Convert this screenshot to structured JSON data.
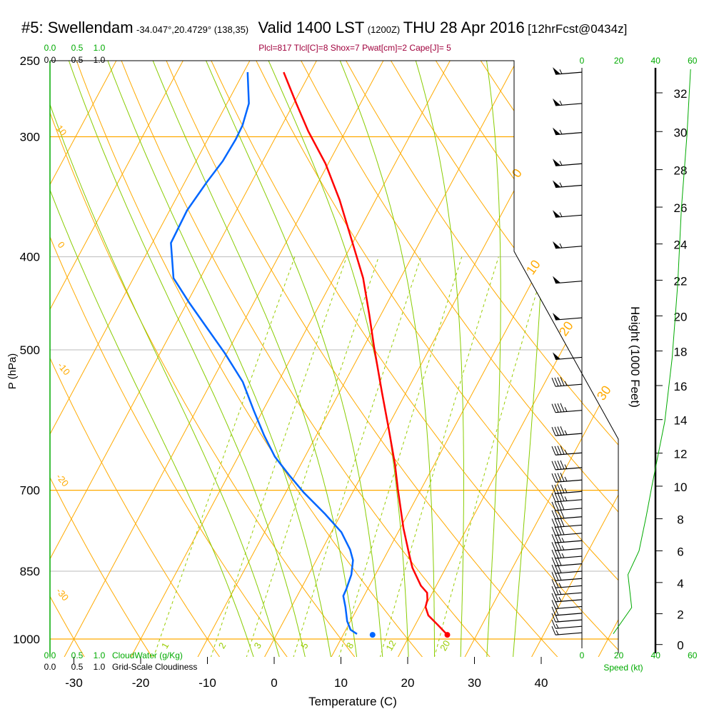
{
  "header": {
    "station": "#5: Swellendam",
    "coords": "-34.047°,20.4729° (138,35)",
    "valid": "Valid 1400 LST",
    "utc": "(1200Z)",
    "date": "THU 28 Apr 2016",
    "forecast": "[12hrFcst@0434z]",
    "indices": "Plcl=817 Tlcl[C]=8 Shox=7 Pwat[cm]=2 Cape[J]= 5"
  },
  "colors": {
    "temperature": "#ff0000",
    "dewpoint": "#0066ff",
    "isotherm": "#ffaa00",
    "moist_adiabat": "#88cc00",
    "mixing_ratio": "#99cc00",
    "axis_green": "#00aa00",
    "indices": "#a0003c"
  },
  "chart_data": {
    "type": "skewt",
    "title": "#5: Swellendam Valid 1400 LST THU 28 Apr 2016",
    "ylabel": "P (hPa)",
    "xlabel": "Temperature (C)",
    "right_axis_label": "Height (1000 Feet)",
    "pressure_ticks": [
      250,
      300,
      400,
      500,
      700,
      850,
      1000
    ],
    "pressure_ticks_labels": [
      "250",
      "300",
      "400",
      "500",
      "700",
      "850",
      "1000"
    ],
    "temperature_ticks": [
      -30,
      -20,
      -10,
      0,
      10,
      20,
      30,
      40
    ],
    "temperature_ticks_labels": [
      "-30",
      "-20",
      "-10",
      "0",
      "10",
      "20",
      "30",
      "40"
    ],
    "ylim": [
      1000,
      250
    ],
    "xlim_at_1000hPa": [
      -34,
      52
    ],
    "height_ticks": [
      0,
      2,
      4,
      6,
      8,
      10,
      12,
      14,
      16,
      18,
      20,
      22,
      24,
      26,
      28,
      30,
      32
    ],
    "height_ticks_labels": [
      "0",
      "2",
      "4",
      "6",
      "8",
      "10",
      "12",
      "14",
      "16",
      "18",
      "20",
      "22",
      "24",
      "26",
      "28",
      "30",
      "32"
    ],
    "dry_adiabat_labels": [
      "10",
      "0",
      "-10",
      "-20",
      "-30"
    ],
    "isotherm_labels": [
      "0",
      "10",
      "20",
      "30"
    ],
    "mixing_ratio_labels": [
      "1",
      "2",
      "3",
      "5",
      "8",
      "12",
      "20"
    ],
    "mixing_ratios": [
      1,
      2,
      3,
      5,
      8,
      12,
      20
    ],
    "cloud_water_axis": {
      "label": "CloudWater (g/Kg)",
      "ticks": [
        "0.0",
        "0.5",
        "1.0"
      ]
    },
    "cloudiness_axis": {
      "label": "Grid-Scale Cloudiness",
      "ticks": [
        "0.0",
        "0.5",
        "1.0"
      ]
    },
    "speed_axis": {
      "label": "Speed (kt)",
      "ticks": [
        0,
        20,
        40,
        60
      ],
      "ticks_labels": [
        "0",
        "20",
        "40",
        "60"
      ]
    },
    "temperature_profile": [
      {
        "p": 257,
        "t": -44.0
      },
      {
        "p": 277,
        "t": -39.6
      },
      {
        "p": 296,
        "t": -35.6
      },
      {
        "p": 320,
        "t": -30.4
      },
      {
        "p": 349,
        "t": -25.4
      },
      {
        "p": 387,
        "t": -20.0
      },
      {
        "p": 421,
        "t": -15.6
      },
      {
        "p": 459,
        "t": -11.8
      },
      {
        "p": 497,
        "t": -8.4
      },
      {
        "p": 554,
        "t": -3.6
      },
      {
        "p": 604,
        "t": 0.3
      },
      {
        "p": 658,
        "t": 4.1
      },
      {
        "p": 698,
        "t": 6.5
      },
      {
        "p": 767,
        "t": 10.5
      },
      {
        "p": 814,
        "t": 13.3
      },
      {
        "p": 843,
        "t": 15.0
      },
      {
        "p": 880,
        "t": 17.7
      },
      {
        "p": 895,
        "t": 19.2
      },
      {
        "p": 910,
        "t": 19.8
      },
      {
        "p": 926,
        "t": 20.1
      },
      {
        "p": 945,
        "t": 21.2
      },
      {
        "p": 966,
        "t": 23.3
      },
      {
        "p": 990,
        "t": 25.6
      }
    ],
    "dewpoint_profile": [
      {
        "p": 257,
        "t": -49.4
      },
      {
        "p": 277,
        "t": -46.7
      },
      {
        "p": 292,
        "t": -45.9
      },
      {
        "p": 302,
        "t": -45.8
      },
      {
        "p": 318,
        "t": -46.0
      },
      {
        "p": 334,
        "t": -46.7
      },
      {
        "p": 358,
        "t": -47.4
      },
      {
        "p": 387,
        "t": -47.2
      },
      {
        "p": 421,
        "t": -44.0
      },
      {
        "p": 447,
        "t": -39.6
      },
      {
        "p": 475,
        "t": -34.9
      },
      {
        "p": 504,
        "t": -30.3
      },
      {
        "p": 540,
        "t": -25.3
      },
      {
        "p": 578,
        "t": -21.4
      },
      {
        "p": 614,
        "t": -17.8
      },
      {
        "p": 646,
        "t": -14.5
      },
      {
        "p": 675,
        "t": -10.9
      },
      {
        "p": 704,
        "t": -7.3
      },
      {
        "p": 741,
        "t": -2.4
      },
      {
        "p": 774,
        "t": 1.5
      },
      {
        "p": 807,
        "t": 4.2
      },
      {
        "p": 828,
        "t": 5.5
      },
      {
        "p": 857,
        "t": 6.4
      },
      {
        "p": 887,
        "t": 6.8
      },
      {
        "p": 902,
        "t": 6.9
      },
      {
        "p": 926,
        "t": 8.1
      },
      {
        "p": 958,
        "t": 9.5
      },
      {
        "p": 978,
        "t": 10.7
      },
      {
        "p": 988,
        "t": 12.0
      }
    ],
    "surface": {
      "p": 990,
      "temperature": 25.6,
      "dewpoint": 14.4
    },
    "wind_barbs": [
      {
        "p": 257,
        "kt": 55
      },
      {
        "p": 277,
        "kt": 55
      },
      {
        "p": 297,
        "kt": 55
      },
      {
        "p": 320,
        "kt": 55
      },
      {
        "p": 337,
        "kt": 55
      },
      {
        "p": 362,
        "kt": 55
      },
      {
        "p": 390,
        "kt": 55
      },
      {
        "p": 424,
        "kt": 50
      },
      {
        "p": 463,
        "kt": 50
      },
      {
        "p": 509,
        "kt": 50
      },
      {
        "p": 543,
        "kt": 45
      },
      {
        "p": 578,
        "kt": 45
      },
      {
        "p": 611,
        "kt": 45
      },
      {
        "p": 640,
        "kt": 45
      },
      {
        "p": 663,
        "kt": 45
      },
      {
        "p": 683,
        "kt": 45
      },
      {
        "p": 702,
        "kt": 45
      },
      {
        "p": 716,
        "kt": 45
      },
      {
        "p": 731,
        "kt": 40
      },
      {
        "p": 746,
        "kt": 40
      },
      {
        "p": 761,
        "kt": 40
      },
      {
        "p": 776,
        "kt": 40
      },
      {
        "p": 790,
        "kt": 35
      },
      {
        "p": 805,
        "kt": 35
      },
      {
        "p": 820,
        "kt": 35
      },
      {
        "p": 835,
        "kt": 30
      },
      {
        "p": 850,
        "kt": 30
      },
      {
        "p": 865,
        "kt": 30
      },
      {
        "p": 880,
        "kt": 25
      },
      {
        "p": 895,
        "kt": 25
      },
      {
        "p": 910,
        "kt": 25
      },
      {
        "p": 925,
        "kt": 20
      },
      {
        "p": 940,
        "kt": 20
      },
      {
        "p": 955,
        "kt": 20
      },
      {
        "p": 970,
        "kt": 15
      },
      {
        "p": 985,
        "kt": 15
      }
    ],
    "wind_speed_profile": [
      {
        "h_kft": 0.7,
        "kt": 17
      },
      {
        "h_kft": 2.4,
        "kt": 27
      },
      {
        "h_kft": 4.5,
        "kt": 25
      },
      {
        "h_kft": 6.0,
        "kt": 31
      },
      {
        "h_kft": 8.2,
        "kt": 35
      },
      {
        "h_kft": 10.0,
        "kt": 38
      },
      {
        "h_kft": 11.7,
        "kt": 41
      },
      {
        "h_kft": 13.9,
        "kt": 45
      },
      {
        "h_kft": 17.6,
        "kt": 49
      },
      {
        "h_kft": 21.8,
        "kt": 52
      },
      {
        "h_kft": 25.9,
        "kt": 54
      },
      {
        "h_kft": 29.8,
        "kt": 57
      },
      {
        "h_kft": 33.2,
        "kt": 59
      }
    ]
  }
}
